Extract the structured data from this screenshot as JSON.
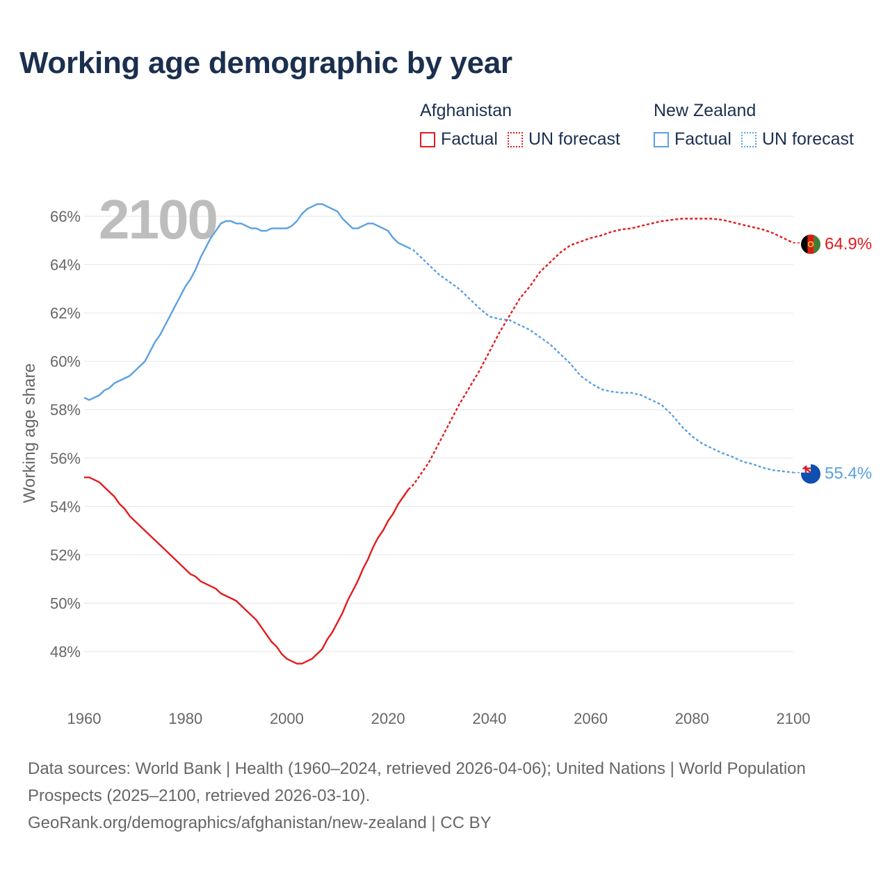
{
  "title": "Working age demographic by year",
  "year_display": "2100",
  "legend": {
    "groups": [
      {
        "name": "Afghanistan",
        "color": "#e31a1c",
        "items": [
          "Factual",
          "UN forecast"
        ]
      },
      {
        "name": "New Zealand",
        "color": "#5aa0e0",
        "items": [
          "Factual",
          "UN forecast"
        ]
      }
    ]
  },
  "footer": {
    "line1": "Data sources: World Bank | Health (1960–2024, retrieved 2026-04-06); United Nations | World Population Prospects (2025–2100, retrieved 2026-03-10).",
    "line2": "GeoRank.org/demographics/afghanistan/new-zealand | CC BY"
  },
  "chart_data": {
    "type": "line",
    "title": "Working age demographic by year",
    "xlabel": "",
    "ylabel": "Working age share",
    "xlim": [
      1960,
      2100
    ],
    "ylim": [
      46,
      67
    ],
    "x_ticks": [
      "1960",
      "1980",
      "2000",
      "2020",
      "2040",
      "2060",
      "2080",
      "2100"
    ],
    "y_ticks": [
      "48%",
      "50%",
      "52%",
      "54%",
      "56%",
      "58%",
      "60%",
      "62%",
      "64%",
      "66%"
    ],
    "factual_end_year": 2024,
    "series": [
      {
        "name": "Afghanistan",
        "color": "#e31a1c",
        "flag_icon": "afghanistan-flag-icon",
        "end_label": "64.9%",
        "points": [
          [
            1960,
            55.2
          ],
          [
            1961,
            55.2
          ],
          [
            1962,
            55.1
          ],
          [
            1963,
            55.0
          ],
          [
            1964,
            54.8
          ],
          [
            1965,
            54.6
          ],
          [
            1966,
            54.4
          ],
          [
            1967,
            54.1
          ],
          [
            1968,
            53.9
          ],
          [
            1969,
            53.6
          ],
          [
            1970,
            53.4
          ],
          [
            1972,
            53.0
          ],
          [
            1974,
            52.6
          ],
          [
            1976,
            52.2
          ],
          [
            1978,
            51.8
          ],
          [
            1980,
            51.4
          ],
          [
            1981,
            51.2
          ],
          [
            1982,
            51.1
          ],
          [
            1983,
            50.9
          ],
          [
            1985,
            50.7
          ],
          [
            1986,
            50.6
          ],
          [
            1987,
            50.4
          ],
          [
            1988,
            50.3
          ],
          [
            1990,
            50.1
          ],
          [
            1992,
            49.7
          ],
          [
            1994,
            49.3
          ],
          [
            1996,
            48.7
          ],
          [
            1997,
            48.4
          ],
          [
            1998,
            48.2
          ],
          [
            1999,
            47.9
          ],
          [
            2000,
            47.7
          ],
          [
            2001,
            47.6
          ],
          [
            2002,
            47.5
          ],
          [
            2003,
            47.5
          ],
          [
            2004,
            47.6
          ],
          [
            2005,
            47.7
          ],
          [
            2006,
            47.9
          ],
          [
            2007,
            48.1
          ],
          [
            2008,
            48.5
          ],
          [
            2009,
            48.8
          ],
          [
            2010,
            49.2
          ],
          [
            2011,
            49.6
          ],
          [
            2012,
            50.1
          ],
          [
            2013,
            50.5
          ],
          [
            2014,
            50.9
          ],
          [
            2015,
            51.4
          ],
          [
            2016,
            51.8
          ],
          [
            2017,
            52.3
          ],
          [
            2018,
            52.7
          ],
          [
            2019,
            53.0
          ],
          [
            2020,
            53.4
          ],
          [
            2021,
            53.7
          ],
          [
            2022,
            54.1
          ],
          [
            2023,
            54.4
          ],
          [
            2024,
            54.7
          ],
          [
            2025,
            54.9
          ],
          [
            2026,
            55.2
          ],
          [
            2027,
            55.5
          ],
          [
            2028,
            55.8
          ],
          [
            2030,
            56.6
          ],
          [
            2032,
            57.4
          ],
          [
            2034,
            58.2
          ],
          [
            2036,
            58.9
          ],
          [
            2038,
            59.6
          ],
          [
            2040,
            60.4
          ],
          [
            2042,
            61.2
          ],
          [
            2044,
            61.9
          ],
          [
            2046,
            62.6
          ],
          [
            2048,
            63.1
          ],
          [
            2050,
            63.7
          ],
          [
            2052,
            64.1
          ],
          [
            2054,
            64.5
          ],
          [
            2056,
            64.8
          ],
          [
            2058,
            64.95
          ],
          [
            2060,
            65.1
          ],
          [
            2062,
            65.2
          ],
          [
            2064,
            65.35
          ],
          [
            2066,
            65.45
          ],
          [
            2068,
            65.5
          ],
          [
            2070,
            65.6
          ],
          [
            2072,
            65.7
          ],
          [
            2074,
            65.8
          ],
          [
            2076,
            65.85
          ],
          [
            2078,
            65.9
          ],
          [
            2080,
            65.9
          ],
          [
            2082,
            65.9
          ],
          [
            2084,
            65.9
          ],
          [
            2086,
            65.85
          ],
          [
            2088,
            65.75
          ],
          [
            2090,
            65.65
          ],
          [
            2092,
            65.55
          ],
          [
            2094,
            65.45
          ],
          [
            2096,
            65.3
          ],
          [
            2098,
            65.1
          ],
          [
            2100,
            64.9
          ]
        ]
      },
      {
        "name": "New Zealand",
        "color": "#5aa0e0",
        "flag_icon": "new-zealand-flag-icon",
        "end_label": "55.4%",
        "points": [
          [
            1960,
            58.5
          ],
          [
            1961,
            58.4
          ],
          [
            1962,
            58.5
          ],
          [
            1963,
            58.6
          ],
          [
            1964,
            58.8
          ],
          [
            1965,
            58.9
          ],
          [
            1966,
            59.1
          ],
          [
            1967,
            59.2
          ],
          [
            1968,
            59.3
          ],
          [
            1969,
            59.4
          ],
          [
            1970,
            59.6
          ],
          [
            1971,
            59.8
          ],
          [
            1972,
            60.0
          ],
          [
            1973,
            60.4
          ],
          [
            1974,
            60.8
          ],
          [
            1975,
            61.1
          ],
          [
            1976,
            61.5
          ],
          [
            1977,
            61.9
          ],
          [
            1978,
            62.3
          ],
          [
            1979,
            62.7
          ],
          [
            1980,
            63.1
          ],
          [
            1981,
            63.4
          ],
          [
            1982,
            63.8
          ],
          [
            1983,
            64.3
          ],
          [
            1984,
            64.7
          ],
          [
            1985,
            65.1
          ],
          [
            1986,
            65.4
          ],
          [
            1987,
            65.7
          ],
          [
            1988,
            65.8
          ],
          [
            1989,
            65.8
          ],
          [
            1990,
            65.7
          ],
          [
            1991,
            65.7
          ],
          [
            1992,
            65.6
          ],
          [
            1993,
            65.5
          ],
          [
            1994,
            65.5
          ],
          [
            1995,
            65.4
          ],
          [
            1996,
            65.4
          ],
          [
            1997,
            65.5
          ],
          [
            1998,
            65.5
          ],
          [
            1999,
            65.5
          ],
          [
            2000,
            65.5
          ],
          [
            2001,
            65.6
          ],
          [
            2002,
            65.8
          ],
          [
            2003,
            66.1
          ],
          [
            2004,
            66.3
          ],
          [
            2005,
            66.4
          ],
          [
            2006,
            66.5
          ],
          [
            2007,
            66.5
          ],
          [
            2008,
            66.4
          ],
          [
            2009,
            66.3
          ],
          [
            2010,
            66.2
          ],
          [
            2011,
            65.9
          ],
          [
            2012,
            65.7
          ],
          [
            2013,
            65.5
          ],
          [
            2014,
            65.5
          ],
          [
            2015,
            65.6
          ],
          [
            2016,
            65.7
          ],
          [
            2017,
            65.7
          ],
          [
            2018,
            65.6
          ],
          [
            2019,
            65.5
          ],
          [
            2020,
            65.4
          ],
          [
            2021,
            65.1
          ],
          [
            2022,
            64.9
          ],
          [
            2023,
            64.8
          ],
          [
            2024,
            64.7
          ],
          [
            2025,
            64.6
          ],
          [
            2026,
            64.4
          ],
          [
            2028,
            64.0
          ],
          [
            2030,
            63.6
          ],
          [
            2032,
            63.3
          ],
          [
            2034,
            63.0
          ],
          [
            2036,
            62.6
          ],
          [
            2038,
            62.2
          ],
          [
            2040,
            61.85
          ],
          [
            2042,
            61.75
          ],
          [
            2044,
            61.7
          ],
          [
            2046,
            61.5
          ],
          [
            2048,
            61.3
          ],
          [
            2050,
            61.0
          ],
          [
            2052,
            60.7
          ],
          [
            2054,
            60.3
          ],
          [
            2056,
            59.9
          ],
          [
            2058,
            59.4
          ],
          [
            2060,
            59.1
          ],
          [
            2062,
            58.85
          ],
          [
            2064,
            58.75
          ],
          [
            2066,
            58.7
          ],
          [
            2068,
            58.7
          ],
          [
            2070,
            58.6
          ],
          [
            2072,
            58.4
          ],
          [
            2074,
            58.2
          ],
          [
            2076,
            57.8
          ],
          [
            2078,
            57.3
          ],
          [
            2080,
            56.9
          ],
          [
            2082,
            56.6
          ],
          [
            2084,
            56.4
          ],
          [
            2086,
            56.2
          ],
          [
            2088,
            56.05
          ],
          [
            2090,
            55.85
          ],
          [
            2092,
            55.75
          ],
          [
            2094,
            55.6
          ],
          [
            2096,
            55.5
          ],
          [
            2098,
            55.45
          ],
          [
            2100,
            55.4
          ]
        ]
      }
    ]
  }
}
